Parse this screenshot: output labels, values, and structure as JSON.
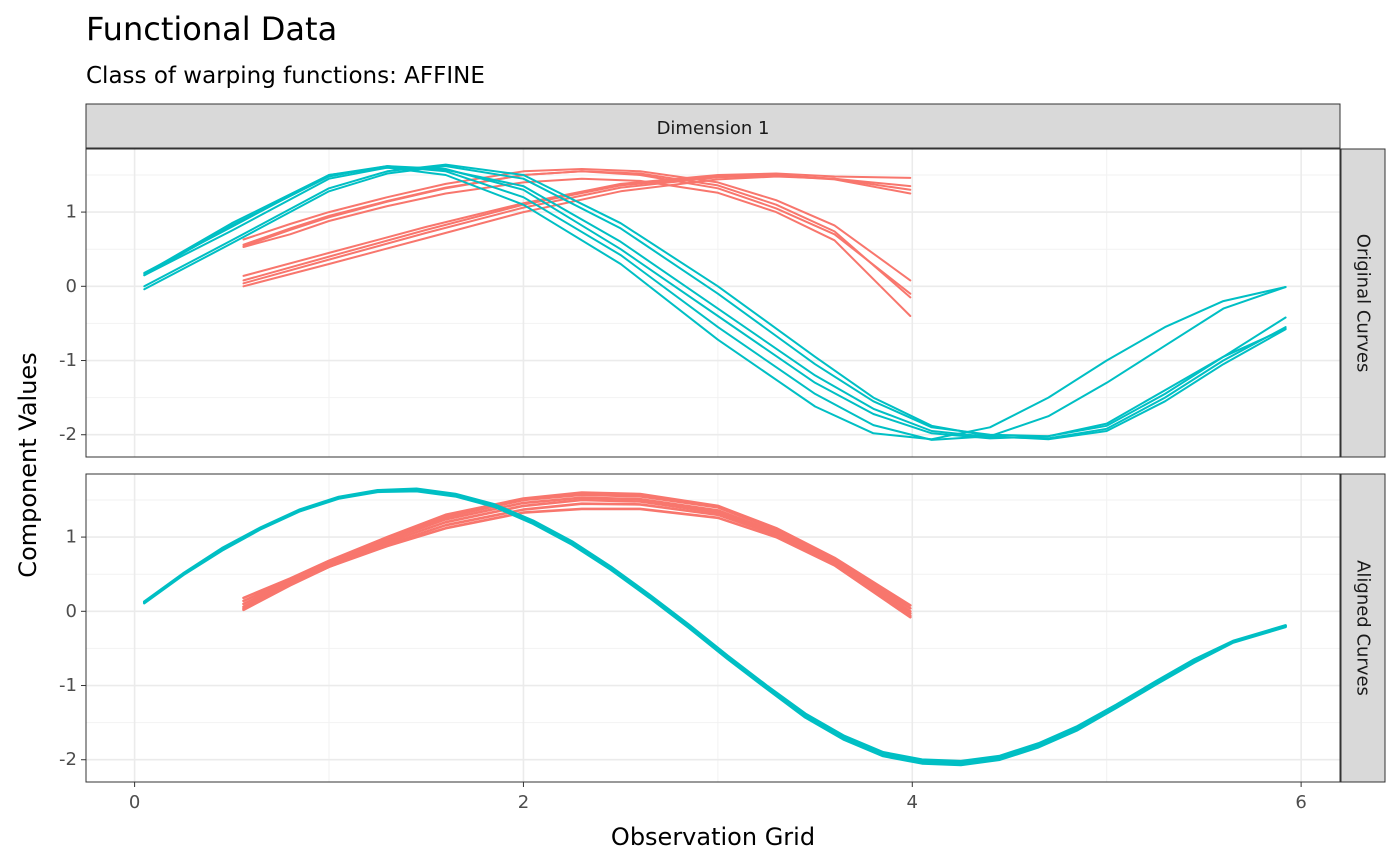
{
  "chart_data": {
    "type": "line",
    "title": "Functional Data",
    "subtitle": "Class of warping functions: AFFINE",
    "xlabel": "Observation Grid",
    "ylabel": "Component Values",
    "column_strip": "Dimension 1",
    "xlim": [
      -0.25,
      6.2
    ],
    "ylim": [
      -2.3,
      1.85
    ],
    "x_ticks": [
      0,
      2,
      4,
      6
    ],
    "x_tick_labels": [
      "0",
      "2",
      "4",
      "6"
    ],
    "y_ticks": [
      -2,
      -1,
      0,
      1
    ],
    "y_tick_labels": [
      "-2",
      "-1",
      "0",
      "1"
    ],
    "grid": true,
    "colors": {
      "cluster1": "#F8766D",
      "cluster2": "#00BFC4"
    },
    "panels": [
      {
        "label": "Original Curves",
        "series": [
          {
            "color": "cluster1",
            "x": [
              0.56,
              0.8,
              1.0,
              1.3,
              1.6,
              2.0,
              2.3,
              2.6,
              3.0,
              3.3,
              3.6,
              3.99
            ],
            "y": [
              0.63,
              0.84,
              1.0,
              1.2,
              1.38,
              1.55,
              1.58,
              1.55,
              1.4,
              1.16,
              0.82,
              0.08
            ]
          },
          {
            "color": "cluster1",
            "x": [
              0.56,
              0.8,
              1.0,
              1.3,
              1.6,
              2.0,
              2.3,
              2.6,
              3.0,
              3.3,
              3.6,
              3.99
            ],
            "y": [
              0.56,
              0.78,
              0.95,
              1.15,
              1.33,
              1.5,
              1.55,
              1.5,
              1.32,
              1.05,
              0.7,
              -0.1
            ]
          },
          {
            "color": "cluster1",
            "x": [
              0.56,
              0.8,
              1.0,
              1.3,
              1.6,
              2.0,
              2.3,
              2.6,
              3.0,
              3.3,
              3.6,
              3.99
            ],
            "y": [
              0.54,
              0.76,
              0.93,
              1.14,
              1.32,
              1.5,
              1.55,
              1.52,
              1.36,
              1.1,
              0.74,
              -0.15
            ]
          },
          {
            "color": "cluster1",
            "x": [
              0.56,
              0.8,
              1.0,
              1.3,
              1.6,
              2.0,
              2.3,
              2.6,
              3.0,
              3.3,
              3.6,
              3.99
            ],
            "y": [
              0.53,
              0.7,
              0.88,
              1.08,
              1.25,
              1.4,
              1.45,
              1.42,
              1.26,
              1.0,
              0.62,
              -0.4
            ]
          },
          {
            "color": "cluster1",
            "x": [
              0.56,
              1.0,
              1.5,
              2.0,
              2.5,
              3.0,
              3.3,
              3.6,
              3.99
            ],
            "y": [
              0.14,
              0.45,
              0.8,
              1.12,
              1.38,
              1.5,
              1.52,
              1.48,
              1.46
            ]
          },
          {
            "color": "cluster1",
            "x": [
              0.56,
              1.0,
              1.5,
              2.0,
              2.5,
              3.0,
              3.3,
              3.6,
              3.99
            ],
            "y": [
              0.08,
              0.4,
              0.76,
              1.1,
              1.36,
              1.48,
              1.5,
              1.45,
              1.3
            ]
          },
          {
            "color": "cluster1",
            "x": [
              0.56,
              1.0,
              1.5,
              2.0,
              2.5,
              3.0,
              3.3,
              3.6,
              3.99
            ],
            "y": [
              0.04,
              0.36,
              0.72,
              1.06,
              1.33,
              1.47,
              1.49,
              1.44,
              1.25
            ]
          },
          {
            "color": "cluster1",
            "x": [
              0.56,
              1.0,
              1.5,
              2.0,
              2.5,
              3.0,
              3.3,
              3.6,
              3.99
            ],
            "y": [
              0.0,
              0.3,
              0.65,
              1.0,
              1.28,
              1.44,
              1.48,
              1.45,
              1.35
            ]
          },
          {
            "color": "cluster2",
            "x": [
              0.05,
              0.5,
              1.0,
              1.3,
              1.6,
              2.0,
              2.5,
              3.0,
              3.5,
              3.8,
              4.1,
              4.4,
              4.7,
              5.0,
              5.3,
              5.6,
              5.92
            ],
            "y": [
              0.18,
              0.8,
              1.5,
              1.62,
              1.58,
              1.3,
              0.5,
              -0.4,
              -1.3,
              -1.72,
              -1.98,
              -2.05,
              -2.02,
              -1.85,
              -1.4,
              -0.95,
              -0.57
            ]
          },
          {
            "color": "cluster2",
            "x": [
              0.05,
              0.5,
              1.0,
              1.3,
              1.6,
              2.0,
              2.5,
              3.0,
              3.5,
              3.8,
              4.1,
              4.4,
              4.7,
              5.0,
              5.3,
              5.6,
              5.92
            ],
            "y": [
              0.15,
              0.75,
              1.45,
              1.6,
              1.57,
              1.35,
              0.6,
              -0.3,
              -1.2,
              -1.65,
              -1.95,
              -2.03,
              -2.05,
              -1.92,
              -1.5,
              -1.0,
              -0.55
            ]
          },
          {
            "color": "cluster2",
            "x": [
              0.05,
              0.5,
              1.0,
              1.3,
              1.6,
              2.0,
              2.5,
              3.0,
              3.5,
              3.8,
              4.1,
              4.4,
              4.7,
              5.0,
              5.3,
              5.6,
              5.92
            ],
            "y": [
              0.0,
              0.62,
              1.32,
              1.55,
              1.64,
              1.5,
              0.85,
              0.0,
              -0.95,
              -1.5,
              -1.88,
              -2.02,
              -2.06,
              -1.95,
              -1.55,
              -1.05,
              -0.58
            ]
          },
          {
            "color": "cluster2",
            "x": [
              0.05,
              0.5,
              1.0,
              1.3,
              1.6,
              2.0,
              2.5,
              3.0,
              3.5,
              3.8,
              4.1,
              4.4,
              4.7,
              5.0,
              5.3,
              5.6,
              5.92
            ],
            "y": [
              -0.04,
              0.58,
              1.28,
              1.52,
              1.62,
              1.45,
              0.78,
              -0.1,
              -1.05,
              -1.55,
              -1.9,
              -2.0,
              -2.02,
              -1.88,
              -1.45,
              -0.95,
              -0.42
            ]
          },
          {
            "color": "cluster2",
            "x": [
              0.05,
              0.5,
              1.0,
              1.3,
              1.6,
              2.0,
              2.5,
              3.0,
              3.5,
              3.8,
              4.1,
              4.4,
              4.7,
              5.0,
              5.3,
              5.6,
              5.92
            ],
            "y": [
              0.17,
              0.85,
              1.5,
              1.6,
              1.5,
              1.1,
              0.3,
              -0.72,
              -1.62,
              -1.98,
              -2.06,
              -1.9,
              -1.5,
              -1.0,
              -0.55,
              -0.2,
              -0.01
            ]
          },
          {
            "color": "cluster2",
            "x": [
              0.05,
              0.5,
              1.0,
              1.3,
              1.6,
              2.0,
              2.5,
              3.0,
              3.5,
              3.8,
              4.1,
              4.4,
              4.7,
              5.0,
              5.3,
              5.6,
              5.92
            ],
            "y": [
              0.15,
              0.82,
              1.48,
              1.62,
              1.55,
              1.2,
              0.42,
              -0.55,
              -1.45,
              -1.87,
              -2.07,
              -2.02,
              -1.75,
              -1.3,
              -0.8,
              -0.3,
              -0.01
            ]
          }
        ]
      },
      {
        "label": "Aligned Curves",
        "series": [
          {
            "color": "cluster1",
            "x": [
              0.56,
              0.8,
              1.0,
              1.3,
              1.6,
              2.0,
              2.3,
              2.6,
              3.0,
              3.3,
              3.6,
              3.99
            ],
            "y": [
              0.18,
              0.44,
              0.68,
              1.0,
              1.3,
              1.52,
              1.6,
              1.58,
              1.42,
              1.12,
              0.72,
              0.08
            ]
          },
          {
            "color": "cluster1",
            "x": [
              0.56,
              0.8,
              1.0,
              1.3,
              1.6,
              2.0,
              2.3,
              2.6,
              3.0,
              3.3,
              3.6,
              3.99
            ],
            "y": [
              0.14,
              0.42,
              0.66,
              0.98,
              1.27,
              1.5,
              1.57,
              1.55,
              1.4,
              1.1,
              0.7,
              0.04
            ]
          },
          {
            "color": "cluster1",
            "x": [
              0.56,
              0.8,
              1.0,
              1.3,
              1.6,
              2.0,
              2.3,
              2.6,
              3.0,
              3.3,
              3.6,
              3.99
            ],
            "y": [
              0.1,
              0.4,
              0.64,
              0.96,
              1.24,
              1.46,
              1.53,
              1.51,
              1.36,
              1.07,
              0.68,
              0.0
            ]
          },
          {
            "color": "cluster1",
            "x": [
              0.56,
              0.8,
              1.0,
              1.3,
              1.6,
              2.0,
              2.3,
              2.6,
              3.0,
              3.3,
              3.6,
              3.99
            ],
            "y": [
              0.06,
              0.38,
              0.62,
              0.93,
              1.2,
              1.42,
              1.5,
              1.48,
              1.33,
              1.05,
              0.66,
              -0.03
            ]
          },
          {
            "color": "cluster1",
            "x": [
              0.56,
              0.8,
              1.0,
              1.3,
              1.6,
              2.0,
              2.3,
              2.6,
              3.0,
              3.3,
              3.6,
              3.99
            ],
            "y": [
              0.04,
              0.36,
              0.6,
              0.9,
              1.16,
              1.37,
              1.45,
              1.44,
              1.3,
              1.03,
              0.64,
              -0.06
            ]
          },
          {
            "color": "cluster1",
            "x": [
              0.56,
              0.8,
              1.0,
              1.3,
              1.6,
              2.0,
              2.3,
              2.6,
              3.0,
              3.3,
              3.6,
              3.99
            ],
            "y": [
              0.02,
              0.35,
              0.6,
              0.88,
              1.12,
              1.33,
              1.38,
              1.38,
              1.26,
              1.0,
              0.62,
              -0.08
            ]
          },
          {
            "color": "cluster2",
            "x": [
              0.05,
              0.25,
              0.45,
              0.65,
              0.85,
              1.05,
              1.25,
              1.45,
              1.65,
              1.85,
              2.05,
              2.25,
              2.45,
              2.65,
              2.85,
              3.05,
              3.25,
              3.45,
              3.65,
              3.85,
              4.05,
              4.25,
              4.45,
              4.65,
              4.85,
              5.05,
              5.25,
              5.45,
              5.65,
              5.92
            ],
            "y": [
              0.12,
              0.5,
              0.83,
              1.12,
              1.36,
              1.53,
              1.62,
              1.63,
              1.56,
              1.42,
              1.2,
              0.92,
              0.58,
              0.2,
              -0.2,
              -0.62,
              -1.02,
              -1.4,
              -1.7,
              -1.92,
              -2.02,
              -2.04,
              -1.97,
              -1.8,
              -1.57,
              -1.28,
              -0.97,
              -0.67,
              -0.41,
              -0.2
            ]
          },
          {
            "color": "cluster2",
            "x": [
              0.05,
              0.25,
              0.45,
              0.65,
              0.85,
              1.05,
              1.25,
              1.45,
              1.65,
              1.85,
              2.05,
              2.25,
              2.45,
              2.65,
              2.85,
              3.05,
              3.25,
              3.45,
              3.65,
              3.85,
              4.05,
              4.25,
              4.45,
              4.65,
              4.85,
              5.05,
              5.25,
              5.45,
              5.65,
              5.92
            ],
            "y": [
              0.13,
              0.51,
              0.85,
              1.13,
              1.37,
              1.54,
              1.63,
              1.65,
              1.58,
              1.44,
              1.22,
              0.94,
              0.6,
              0.22,
              -0.18,
              -0.6,
              -1.0,
              -1.38,
              -1.68,
              -1.9,
              -2.0,
              -2.02,
              -1.95,
              -1.78,
              -1.55,
              -1.26,
              -0.95,
              -0.65,
              -0.4,
              -0.19
            ]
          },
          {
            "color": "cluster2",
            "x": [
              0.05,
              0.25,
              0.45,
              0.65,
              0.85,
              1.05,
              1.25,
              1.45,
              1.65,
              1.85,
              2.05,
              2.25,
              2.45,
              2.65,
              2.85,
              3.05,
              3.25,
              3.45,
              3.65,
              3.85,
              4.05,
              4.25,
              4.45,
              4.65,
              4.85,
              5.05,
              5.25,
              5.45,
              5.65,
              5.92
            ],
            "y": [
              0.11,
              0.49,
              0.82,
              1.11,
              1.35,
              1.52,
              1.61,
              1.62,
              1.55,
              1.41,
              1.18,
              0.9,
              0.56,
              0.18,
              -0.22,
              -0.64,
              -1.04,
              -1.43,
              -1.73,
              -1.95,
              -2.05,
              -2.07,
              -2.0,
              -1.83,
              -1.6,
              -1.3,
              -0.99,
              -0.69,
              -0.42,
              -0.21
            ]
          }
        ]
      }
    ]
  }
}
